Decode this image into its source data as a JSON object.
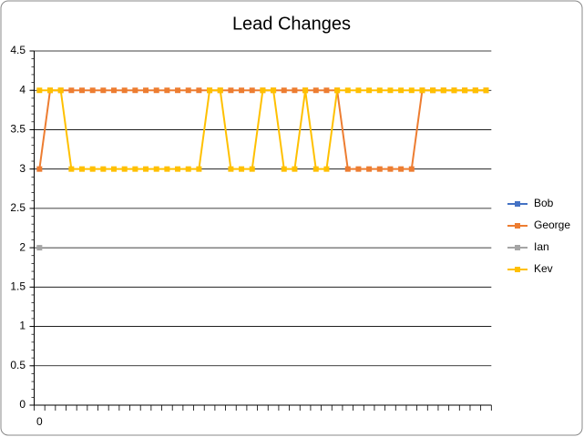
{
  "chart_data": {
    "type": "line",
    "title": "Lead Changes",
    "categories": [
      "0",
      null,
      null,
      null,
      null,
      null,
      null,
      null,
      null,
      null,
      null,
      null,
      null,
      null,
      null,
      null,
      null,
      null,
      null,
      null,
      null,
      null,
      null,
      null,
      null,
      null,
      null,
      null,
      null,
      null,
      null,
      null,
      null,
      null,
      null,
      null,
      null,
      null,
      null,
      null,
      null,
      null,
      null
    ],
    "series": [
      {
        "name": "Bob",
        "color": "#4472c4",
        "values": [
          null,
          null,
          null,
          null,
          null,
          null,
          null,
          null,
          null,
          null,
          null,
          null,
          null,
          null,
          null,
          null,
          null,
          null,
          null,
          null,
          null,
          null,
          null,
          null,
          null,
          null,
          null,
          null,
          null,
          null,
          null,
          null,
          null,
          null,
          null,
          null,
          null,
          null,
          null,
          null,
          null,
          null,
          null
        ]
      },
      {
        "name": "George",
        "color": "#ed7d31",
        "values": [
          3,
          4,
          4,
          4,
          4,
          4,
          4,
          4,
          4,
          4,
          4,
          4,
          4,
          4,
          4,
          4,
          4,
          4,
          4,
          4,
          4,
          4,
          4,
          4,
          4,
          4,
          4,
          4,
          4,
          3,
          3,
          3,
          3,
          3,
          3,
          3,
          4,
          4,
          4,
          4,
          4,
          4,
          4
        ]
      },
      {
        "name": "Ian",
        "color": "#a5a5a5",
        "values": [
          2,
          null,
          null,
          null,
          null,
          null,
          null,
          null,
          null,
          null,
          null,
          null,
          null,
          null,
          null,
          null,
          null,
          null,
          null,
          null,
          null,
          null,
          null,
          null,
          null,
          null,
          null,
          null,
          null,
          null,
          null,
          null,
          null,
          null,
          null,
          null,
          null,
          null,
          null,
          null,
          null,
          null,
          null
        ]
      },
      {
        "name": "Kev",
        "color": "#ffc000",
        "values": [
          4,
          4,
          4,
          3,
          3,
          3,
          3,
          3,
          3,
          3,
          3,
          3,
          3,
          3,
          3,
          3,
          4,
          4,
          3,
          3,
          3,
          4,
          4,
          3,
          3,
          4,
          3,
          3,
          4,
          4,
          4,
          4,
          4,
          4,
          4,
          4,
          4,
          4,
          4,
          4,
          4,
          4,
          4
        ]
      }
    ],
    "ylim": [
      0,
      4.5
    ],
    "yticks": [
      0,
      0.5,
      1,
      1.5,
      2,
      2.5,
      3,
      3.5,
      4,
      4.5
    ],
    "grid": true,
    "legend": "right"
  }
}
